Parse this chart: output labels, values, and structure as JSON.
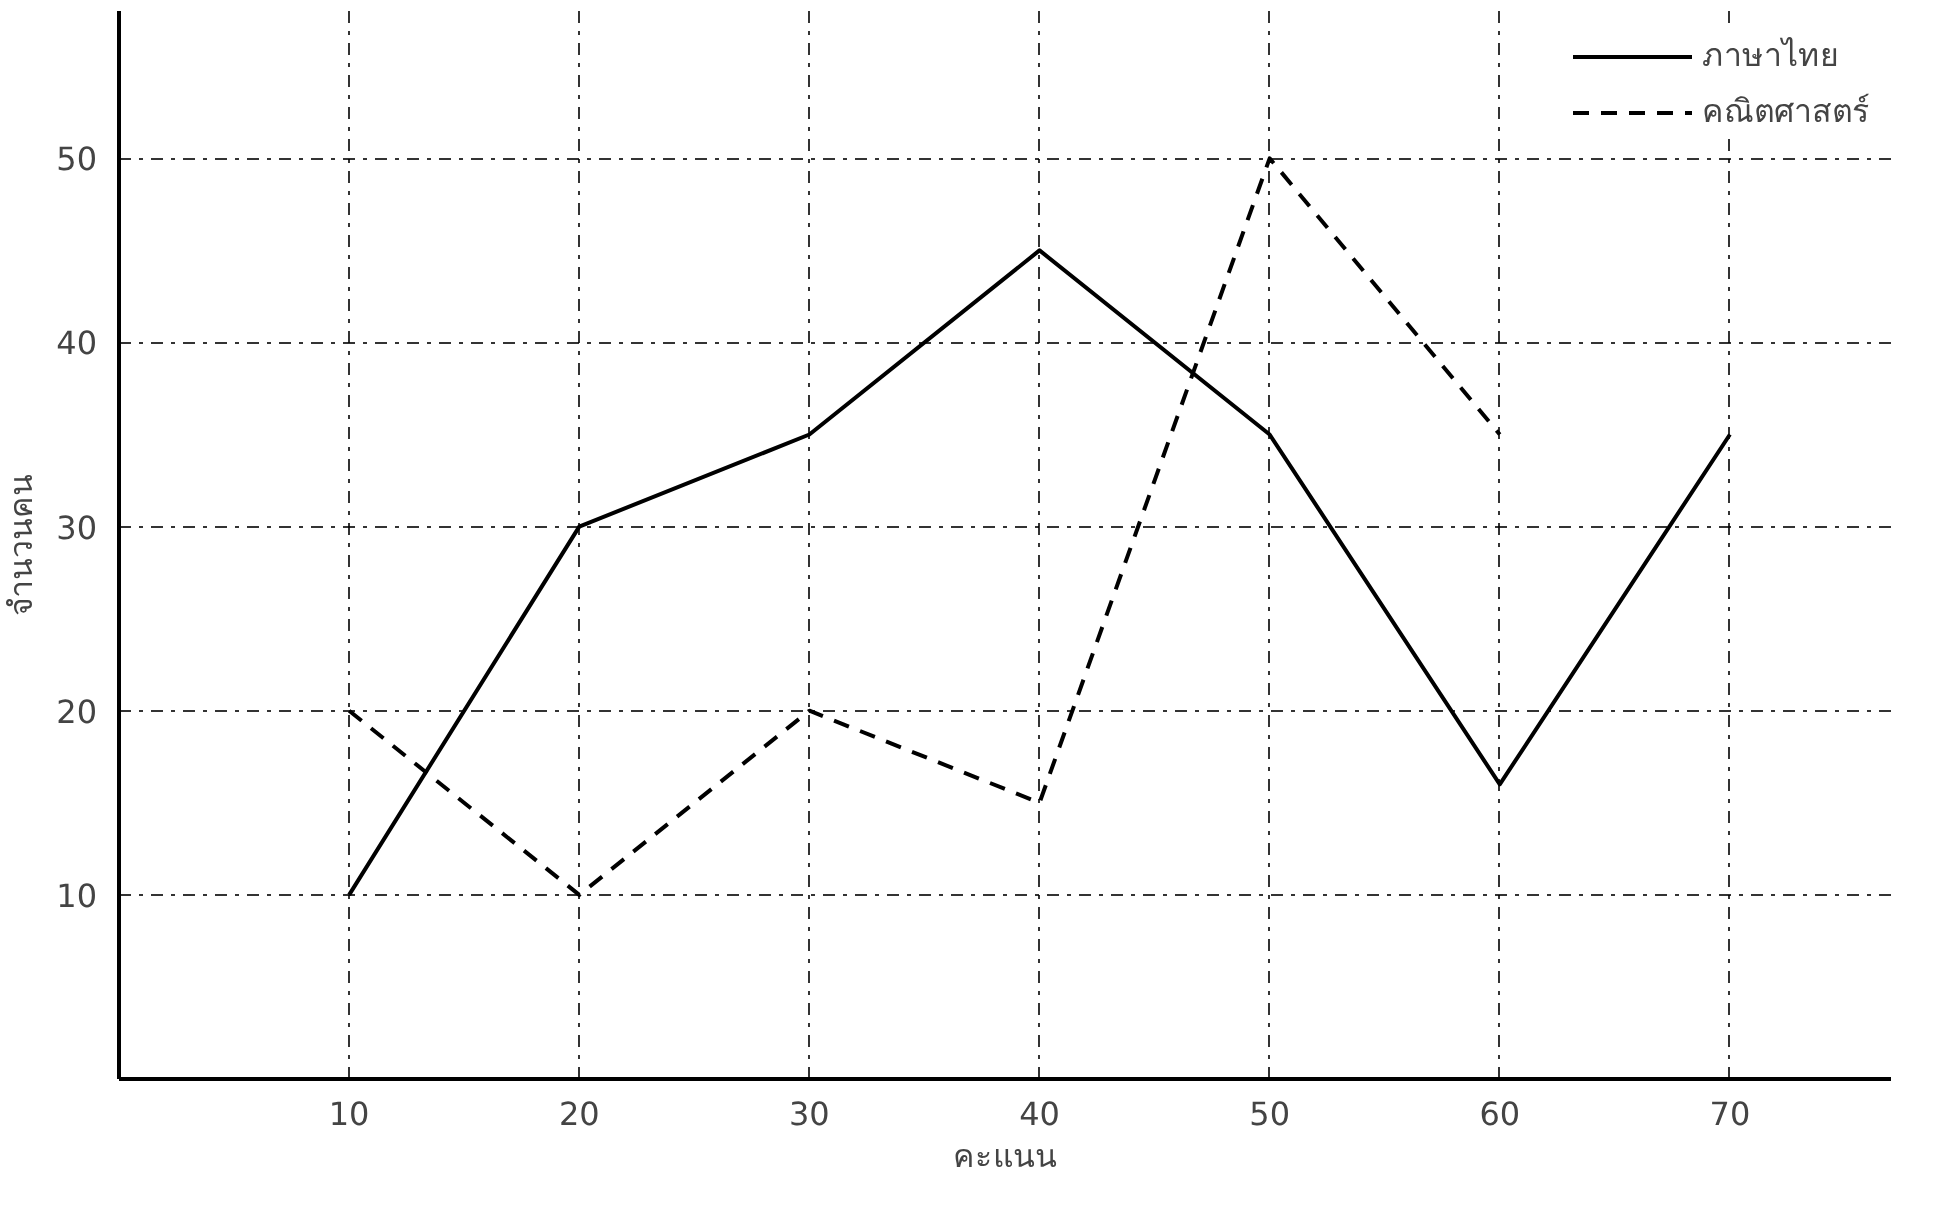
{
  "chart_data": {
    "type": "line",
    "xlabel": "คะแนน",
    "ylabel": "จำนวนคน",
    "x": [
      10,
      20,
      30,
      40,
      50,
      60,
      70
    ],
    "series": [
      {
        "name": "ภาษาไทย",
        "color": "#000000",
        "line_style": "solid",
        "values": [
          10,
          30,
          35,
          45,
          35,
          16,
          35
        ]
      },
      {
        "name": "คณิตศาสตร์",
        "color": "#000000",
        "line_style": "dashed",
        "values": [
          20,
          10,
          20,
          15,
          50,
          35,
          null
        ]
      }
    ],
    "xlim": [
      0,
      77
    ],
    "ylim": [
      0,
      58
    ],
    "xticks": [
      10,
      20,
      30,
      40,
      50,
      60,
      70
    ],
    "yticks": [
      10,
      20,
      30,
      40,
      50
    ],
    "grid": true,
    "legend": "top right",
    "marker": "none"
  }
}
